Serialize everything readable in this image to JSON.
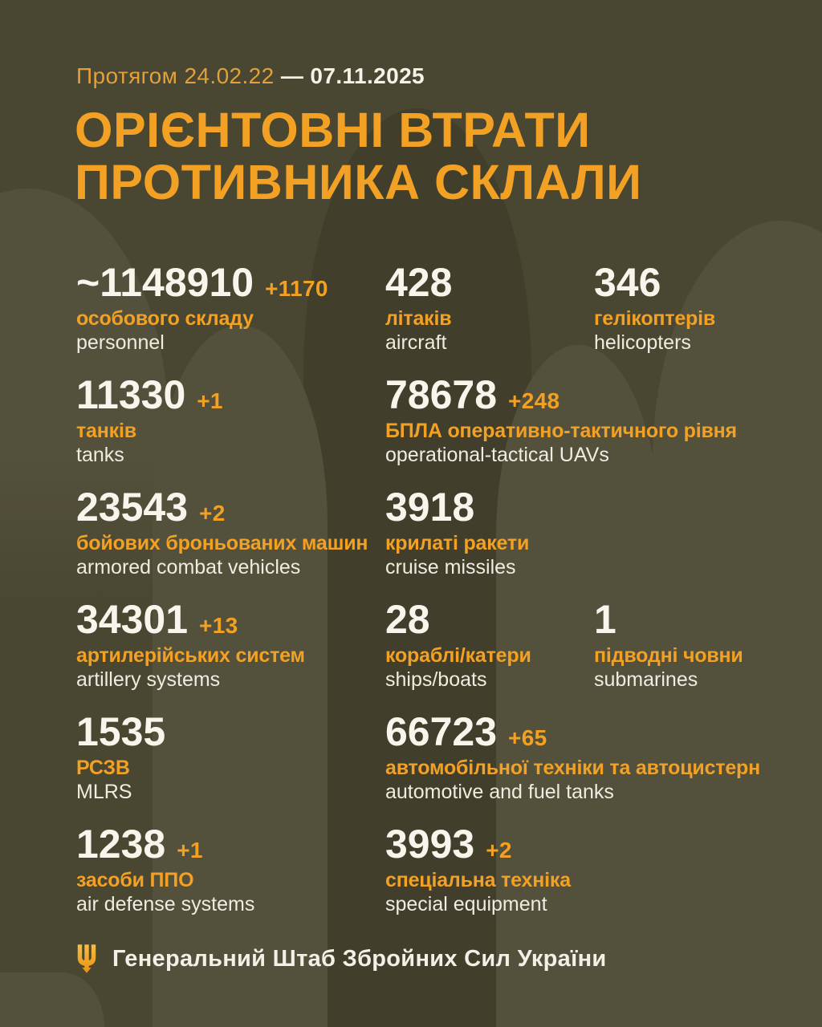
{
  "period": {
    "range_label": "Протягом 24.02.22",
    "separator": "—",
    "end_date": "07.11.2025"
  },
  "title": {
    "line1": "ОРІЄНТОВНІ ВТРАТИ",
    "line2": "ПРОТИВНИКА СКЛАЛИ"
  },
  "stats_rows": [
    [
      {
        "id": "personnel",
        "value": "~1148910",
        "delta": "+1170",
        "label_uk": "особового складу",
        "label_en": "personnel"
      },
      {
        "id": "aircraft",
        "value": "428",
        "delta": "",
        "label_uk": "літаків",
        "label_en": "aircraft"
      },
      {
        "id": "helicopters",
        "value": "346",
        "delta": "",
        "label_uk": "гелікоптерів",
        "label_en": "helicopters"
      }
    ],
    [
      {
        "id": "tanks",
        "value": "11330",
        "delta": "+1",
        "label_uk": "танків",
        "label_en": "tanks"
      },
      {
        "id": "uavs",
        "value": "78678",
        "delta": "+248",
        "label_uk": "БПЛА оперативно-тактичного рівня",
        "label_en": "operational-tactical UAVs"
      }
    ],
    [
      {
        "id": "armored-combat-vehicles",
        "value": "23543",
        "delta": "+2",
        "label_uk": "бойових броньованих машин",
        "label_en": "armored combat vehicles"
      },
      {
        "id": "cruise-missiles",
        "value": "3918",
        "delta": "",
        "label_uk": "крилаті ракети",
        "label_en": "cruise missiles"
      }
    ],
    [
      {
        "id": "artillery-systems",
        "value": "34301",
        "delta": "+13",
        "label_uk": "артилерійських систем",
        "label_en": "artillery systems"
      },
      {
        "id": "ships-boats",
        "value": "28",
        "delta": "",
        "label_uk": "кораблі/катери",
        "label_en": "ships/boats"
      },
      {
        "id": "submarines",
        "value": "1",
        "delta": "",
        "label_uk": "підводні човни",
        "label_en": "submarines"
      }
    ],
    [
      {
        "id": "mlrs",
        "value": "1535",
        "delta": "",
        "label_uk": "РСЗВ",
        "label_en": "MLRS"
      },
      {
        "id": "automotive-fuel-tanks",
        "value": "66723",
        "delta": "+65",
        "label_uk": "автомобільної техніки та автоцистерн",
        "label_en": "automotive and fuel tanks"
      }
    ],
    [
      {
        "id": "air-defense-systems",
        "value": "1238",
        "delta": "+1",
        "label_uk": "засоби ППО",
        "label_en": "air defense systems"
      },
      {
        "id": "special-equipment",
        "value": "3993",
        "delta": "+2",
        "label_uk": "спеціальна техніка",
        "label_en": "special equipment"
      }
    ]
  ],
  "footer": {
    "org": "Генеральний Штаб Збройних Сил України",
    "icon": "trident-icon"
  },
  "colors": {
    "background": "#494631",
    "shell_dark": "#413E2B",
    "shell_light": "#53503C",
    "accent_orange": "#F2A125",
    "text_white": "#F8F6EC"
  }
}
